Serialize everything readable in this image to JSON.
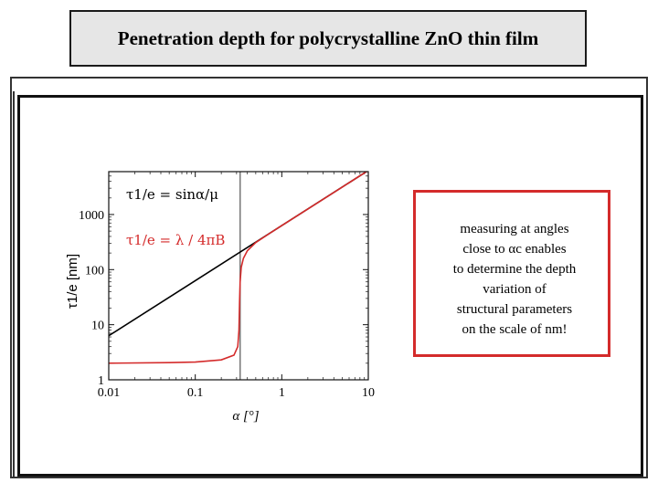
{
  "slide": {
    "title": "Penetration depth for polycrystalline ZnO thin film",
    "note_lines": [
      "measuring at angles",
      "close to αc enables",
      "to determine the depth",
      "variation of",
      "structural parameters",
      "on the scale of nm!"
    ],
    "note_border_color": "#d42b2b"
  },
  "chart_data": {
    "type": "line",
    "title": "",
    "xlabel": "α [°]",
    "ylabel": "τ1/e [nm]",
    "x_scale": "log",
    "y_scale": "log",
    "xlim": [
      0.01,
      10
    ],
    "ylim": [
      1,
      6000
    ],
    "x_ticks": [
      0.01,
      0.1,
      1,
      10
    ],
    "x_tick_labels": [
      "0.01",
      "0.1",
      "1",
      "10"
    ],
    "y_ticks": [
      1,
      10,
      100,
      1000
    ],
    "y_tick_labels": [
      "1",
      "10",
      "100",
      "1000"
    ],
    "critical_angle_line_x": 0.33,
    "legend": {
      "placement": "top-left",
      "entries": [
        {
          "text": "τ1/e = sinα/μ",
          "color": "#000000"
        },
        {
          "text": "τ1/e = λ / 4πB",
          "color": "#d42b2b"
        }
      ]
    },
    "series": [
      {
        "color": "#000000",
        "x": [
          0.01,
          0.1,
          1,
          10
        ],
        "y": [
          6.3,
          63,
          630,
          6300
        ]
      },
      {
        "color": "#d42b2b",
        "x": [
          0.01,
          0.05,
          0.1,
          0.2,
          0.28,
          0.31,
          0.32,
          0.325,
          0.33,
          0.34,
          0.36,
          0.4,
          0.5,
          0.7,
          1,
          2,
          5,
          10
        ],
        "y": [
          2.0,
          2.05,
          2.1,
          2.3,
          2.8,
          4,
          8,
          25,
          60,
          110,
          160,
          220,
          310,
          440,
          630,
          1260,
          3150,
          6300
        ]
      }
    ]
  }
}
